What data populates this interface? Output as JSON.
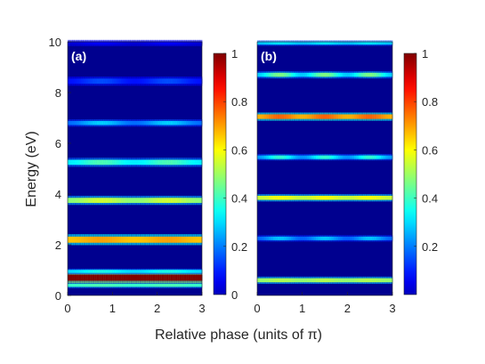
{
  "chart_data": [
    {
      "type": "heatmap",
      "panel_label": "(a)",
      "xlabel": "Relative phase (units of π)",
      "ylabel": "Energy (eV)",
      "xlim": [
        0,
        3
      ],
      "ylim": [
        0,
        10
      ],
      "x_ticks": [
        "0",
        "1",
        "2",
        "3"
      ],
      "y_ticks": [
        "0",
        "2",
        "4",
        "6",
        "8",
        "10"
      ],
      "colormap": "jet",
      "colorbar": {
        "range": [
          0,
          1
        ],
        "ticks": [
          "0",
          "0.2",
          "0.4",
          "0.6",
          "0.8",
          "1"
        ]
      },
      "bands": [
        {
          "energy": 0.4,
          "width": 0.06,
          "intensity": 0.45,
          "modulation": 0.05,
          "modulation_period": 1.5
        },
        {
          "energy": 0.7,
          "width": 0.12,
          "intensity": 1.0,
          "modulation": 0.0,
          "modulation_period": 1.5
        },
        {
          "energy": 0.95,
          "width": 0.06,
          "intensity": 0.4,
          "modulation": 0.15,
          "modulation_period": 1.5
        },
        {
          "energy": 2.2,
          "width": 0.12,
          "intensity": 0.72,
          "modulation": 0.05,
          "modulation_period": 1.5
        },
        {
          "energy": 3.75,
          "width": 0.1,
          "intensity": 0.58,
          "modulation": 0.12,
          "modulation_period": 1.5
        },
        {
          "energy": 5.25,
          "width": 0.1,
          "intensity": 0.45,
          "modulation": 0.2,
          "modulation_period": 1.5
        },
        {
          "energy": 6.8,
          "width": 0.08,
          "intensity": 0.33,
          "modulation": 0.3,
          "modulation_period": 1.5
        },
        {
          "energy": 8.45,
          "width": 0.1,
          "intensity": 0.2,
          "modulation": 0.3,
          "modulation_period": 1.5
        },
        {
          "energy": 9.95,
          "width": 0.07,
          "intensity": 0.12,
          "modulation": 0.3,
          "modulation_period": 1.5
        }
      ]
    },
    {
      "type": "heatmap",
      "panel_label": "(b)",
      "xlim": [
        0,
        3
      ],
      "ylim": [
        0,
        10
      ],
      "x_ticks": [
        "0",
        "1",
        "2",
        "3"
      ],
      "colormap": "jet",
      "colorbar": {
        "range": [
          0,
          1
        ],
        "ticks": [
          "0.2",
          "0.4",
          "0.6",
          "0.8",
          "1"
        ]
      },
      "bands": [
        {
          "energy": 0.6,
          "width": 0.08,
          "intensity": 0.55,
          "modulation": 0.05,
          "modulation_period": 1.0
        },
        {
          "energy": 2.25,
          "width": 0.07,
          "intensity": 0.32,
          "modulation": 0.3,
          "modulation_period": 1.0
        },
        {
          "energy": 3.85,
          "width": 0.08,
          "intensity": 0.62,
          "modulation": 0.08,
          "modulation_period": 1.0
        },
        {
          "energy": 5.45,
          "width": 0.07,
          "intensity": 0.42,
          "modulation": 0.35,
          "modulation_period": 1.0
        },
        {
          "energy": 7.05,
          "width": 0.09,
          "intensity": 0.78,
          "modulation": 0.1,
          "modulation_period": 1.0
        },
        {
          "energy": 8.7,
          "width": 0.08,
          "intensity": 0.5,
          "modulation": 0.35,
          "modulation_period": 1.0
        },
        {
          "energy": 9.95,
          "width": 0.06,
          "intensity": 0.35,
          "modulation": 0.1,
          "modulation_period": 1.0
        }
      ]
    }
  ]
}
